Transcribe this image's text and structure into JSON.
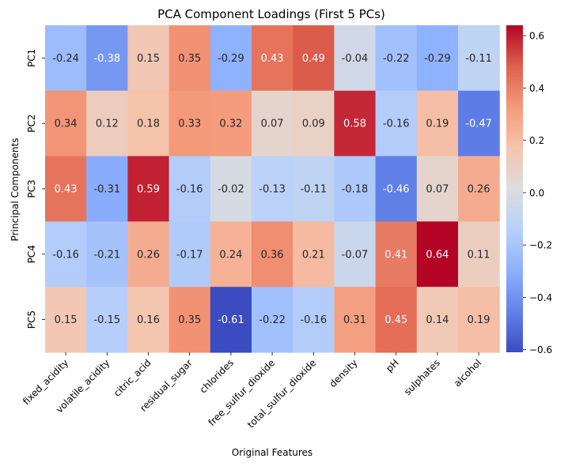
{
  "chart_data": {
    "type": "heatmap",
    "title": "PCA Component Loadings (First 5 PCs)",
    "xlabel": "Original Features",
    "ylabel": "Principal Components",
    "rows": [
      "PC1",
      "PC2",
      "PC3",
      "PC4",
      "PC5"
    ],
    "columns": [
      "fixed_acidity",
      "volatile_acidity",
      "citric_acid",
      "residual_sugar",
      "chlorides",
      "free_sulfur_dioxide",
      "total_sulfur_dioxide",
      "density",
      "pH",
      "sulphates",
      "alcohol"
    ],
    "values": [
      [
        -0.24,
        -0.38,
        0.15,
        0.35,
        -0.29,
        0.43,
        0.49,
        -0.04,
        -0.22,
        -0.29,
        -0.11
      ],
      [
        0.34,
        0.12,
        0.18,
        0.33,
        0.32,
        0.07,
        0.09,
        0.58,
        -0.16,
        0.19,
        -0.47
      ],
      [
        0.43,
        -0.31,
        0.59,
        -0.16,
        -0.02,
        -0.13,
        -0.11,
        -0.18,
        -0.46,
        0.07,
        0.26
      ],
      [
        -0.16,
        -0.21,
        0.26,
        -0.17,
        0.24,
        0.36,
        0.21,
        -0.07,
        0.41,
        0.64,
        0.11
      ],
      [
        0.15,
        -0.15,
        0.16,
        0.35,
        -0.61,
        -0.22,
        -0.16,
        0.31,
        0.45,
        0.14,
        0.19
      ]
    ],
    "colormap": "coolwarm",
    "vmin": -0.61,
    "vmax": 0.64,
    "colorbar_ticks": [
      -0.6,
      -0.4,
      -0.2,
      0.0,
      0.2,
      0.4,
      0.6
    ],
    "colorbar_tick_labels": [
      "−0.6",
      "−0.4",
      "−0.2",
      "0.0",
      "0.2",
      "0.4",
      "0.6"
    ],
    "annotations": true
  }
}
